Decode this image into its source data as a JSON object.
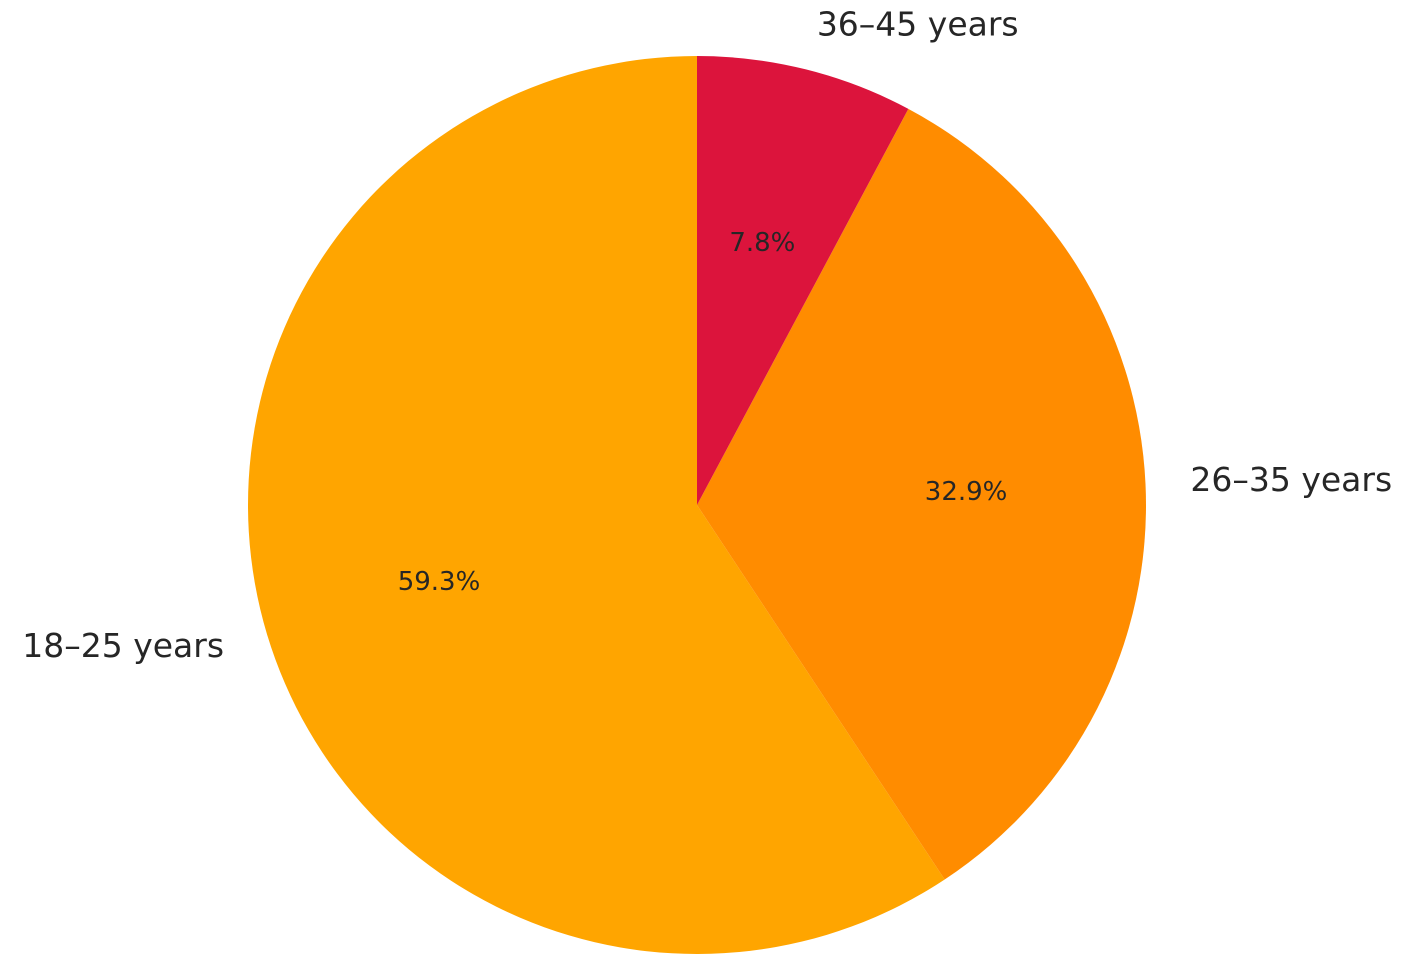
{
  "chart_data": {
    "type": "pie",
    "categories": [
      "18–25 years",
      "26–35 years",
      "36–45 years"
    ],
    "values": [
      59.3,
      32.9,
      7.8
    ],
    "value_labels": [
      "59.3%",
      "32.9%",
      "7.8%"
    ],
    "colors": [
      "#FFA500",
      "#FF8C00",
      "#DC143C"
    ]
  }
}
